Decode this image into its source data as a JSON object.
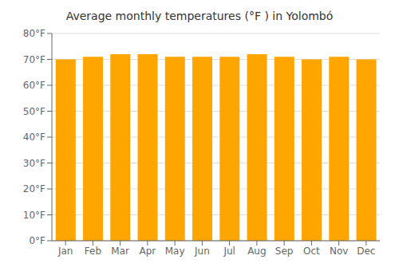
{
  "chart_data": {
    "type": "bar",
    "title": "Average monthly temperatures (°F ) in Yolombó",
    "categories": [
      "Jan",
      "Feb",
      "Mar",
      "Apr",
      "May",
      "Jun",
      "Jul",
      "Aug",
      "Sep",
      "Oct",
      "Nov",
      "Dec"
    ],
    "values": [
      70,
      71,
      72,
      72,
      71,
      71,
      71,
      72,
      71,
      70,
      71,
      70
    ],
    "color": "#FFA500",
    "ylim": [
      0,
      80
    ],
    "yticks": [
      {
        "value": 0,
        "label": "0°F"
      },
      {
        "value": 10,
        "label": "10°F"
      },
      {
        "value": 20,
        "label": "20°F"
      },
      {
        "value": 30,
        "label": "30°F"
      },
      {
        "value": 40,
        "label": "40°F"
      },
      {
        "value": 50,
        "label": "50°F"
      },
      {
        "value": 60,
        "label": "60°F"
      },
      {
        "value": 70,
        "label": "70°F"
      },
      {
        "value": 80,
        "label": "80°F"
      }
    ],
    "grid": true
  }
}
